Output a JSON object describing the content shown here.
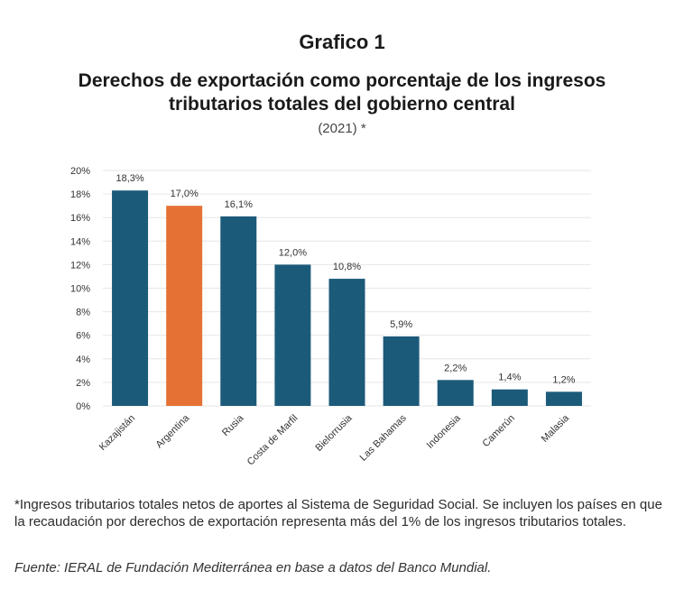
{
  "figure_label": "Grafico 1",
  "title_line1": "Derechos de exportación como porcentaje de los ingresos",
  "title_line2": "tributarios totales del gobierno central",
  "subtitle": "(2021) *",
  "footnote": "*Ingresos tributarios totales netos de aportes al Sistema de Seguridad Social. Se incluyen los países en que la recaudación por derechos de exportación representa más del 1% de los ingresos tributarios totales.",
  "source": "Fuente: IERAL de Fundación Mediterránea en base a datos del Banco Mundial.",
  "colors": {
    "default_bar": "#1c5a7a",
    "highlight_bar": "#e57234",
    "grid": "#e6e6e6"
  },
  "chart_data": {
    "type": "bar",
    "categories": [
      "Kazajistán",
      "Argentina",
      "Rusia",
      "Costa de Marfil",
      "Bielorrusia",
      "Las Bahamas",
      "Indonesia",
      "Camerún",
      "Malasia"
    ],
    "values": [
      18.3,
      17.0,
      16.1,
      12.0,
      10.8,
      5.9,
      2.2,
      1.4,
      1.2
    ],
    "data_labels": [
      "18,3%",
      "17,0%",
      "16,1%",
      "12,0%",
      "10,8%",
      "5,9%",
      "2,2%",
      "1,4%",
      "1,2%"
    ],
    "highlight": "Argentina",
    "ylim": [
      0,
      20
    ],
    "yticks": [
      0,
      2,
      4,
      6,
      8,
      10,
      12,
      14,
      16,
      18,
      20
    ],
    "ytick_labels": [
      "0%",
      "2%",
      "4%",
      "6%",
      "8%",
      "10%",
      "12%",
      "14%",
      "16%",
      "18%",
      "20%"
    ],
    "grid": true
  }
}
